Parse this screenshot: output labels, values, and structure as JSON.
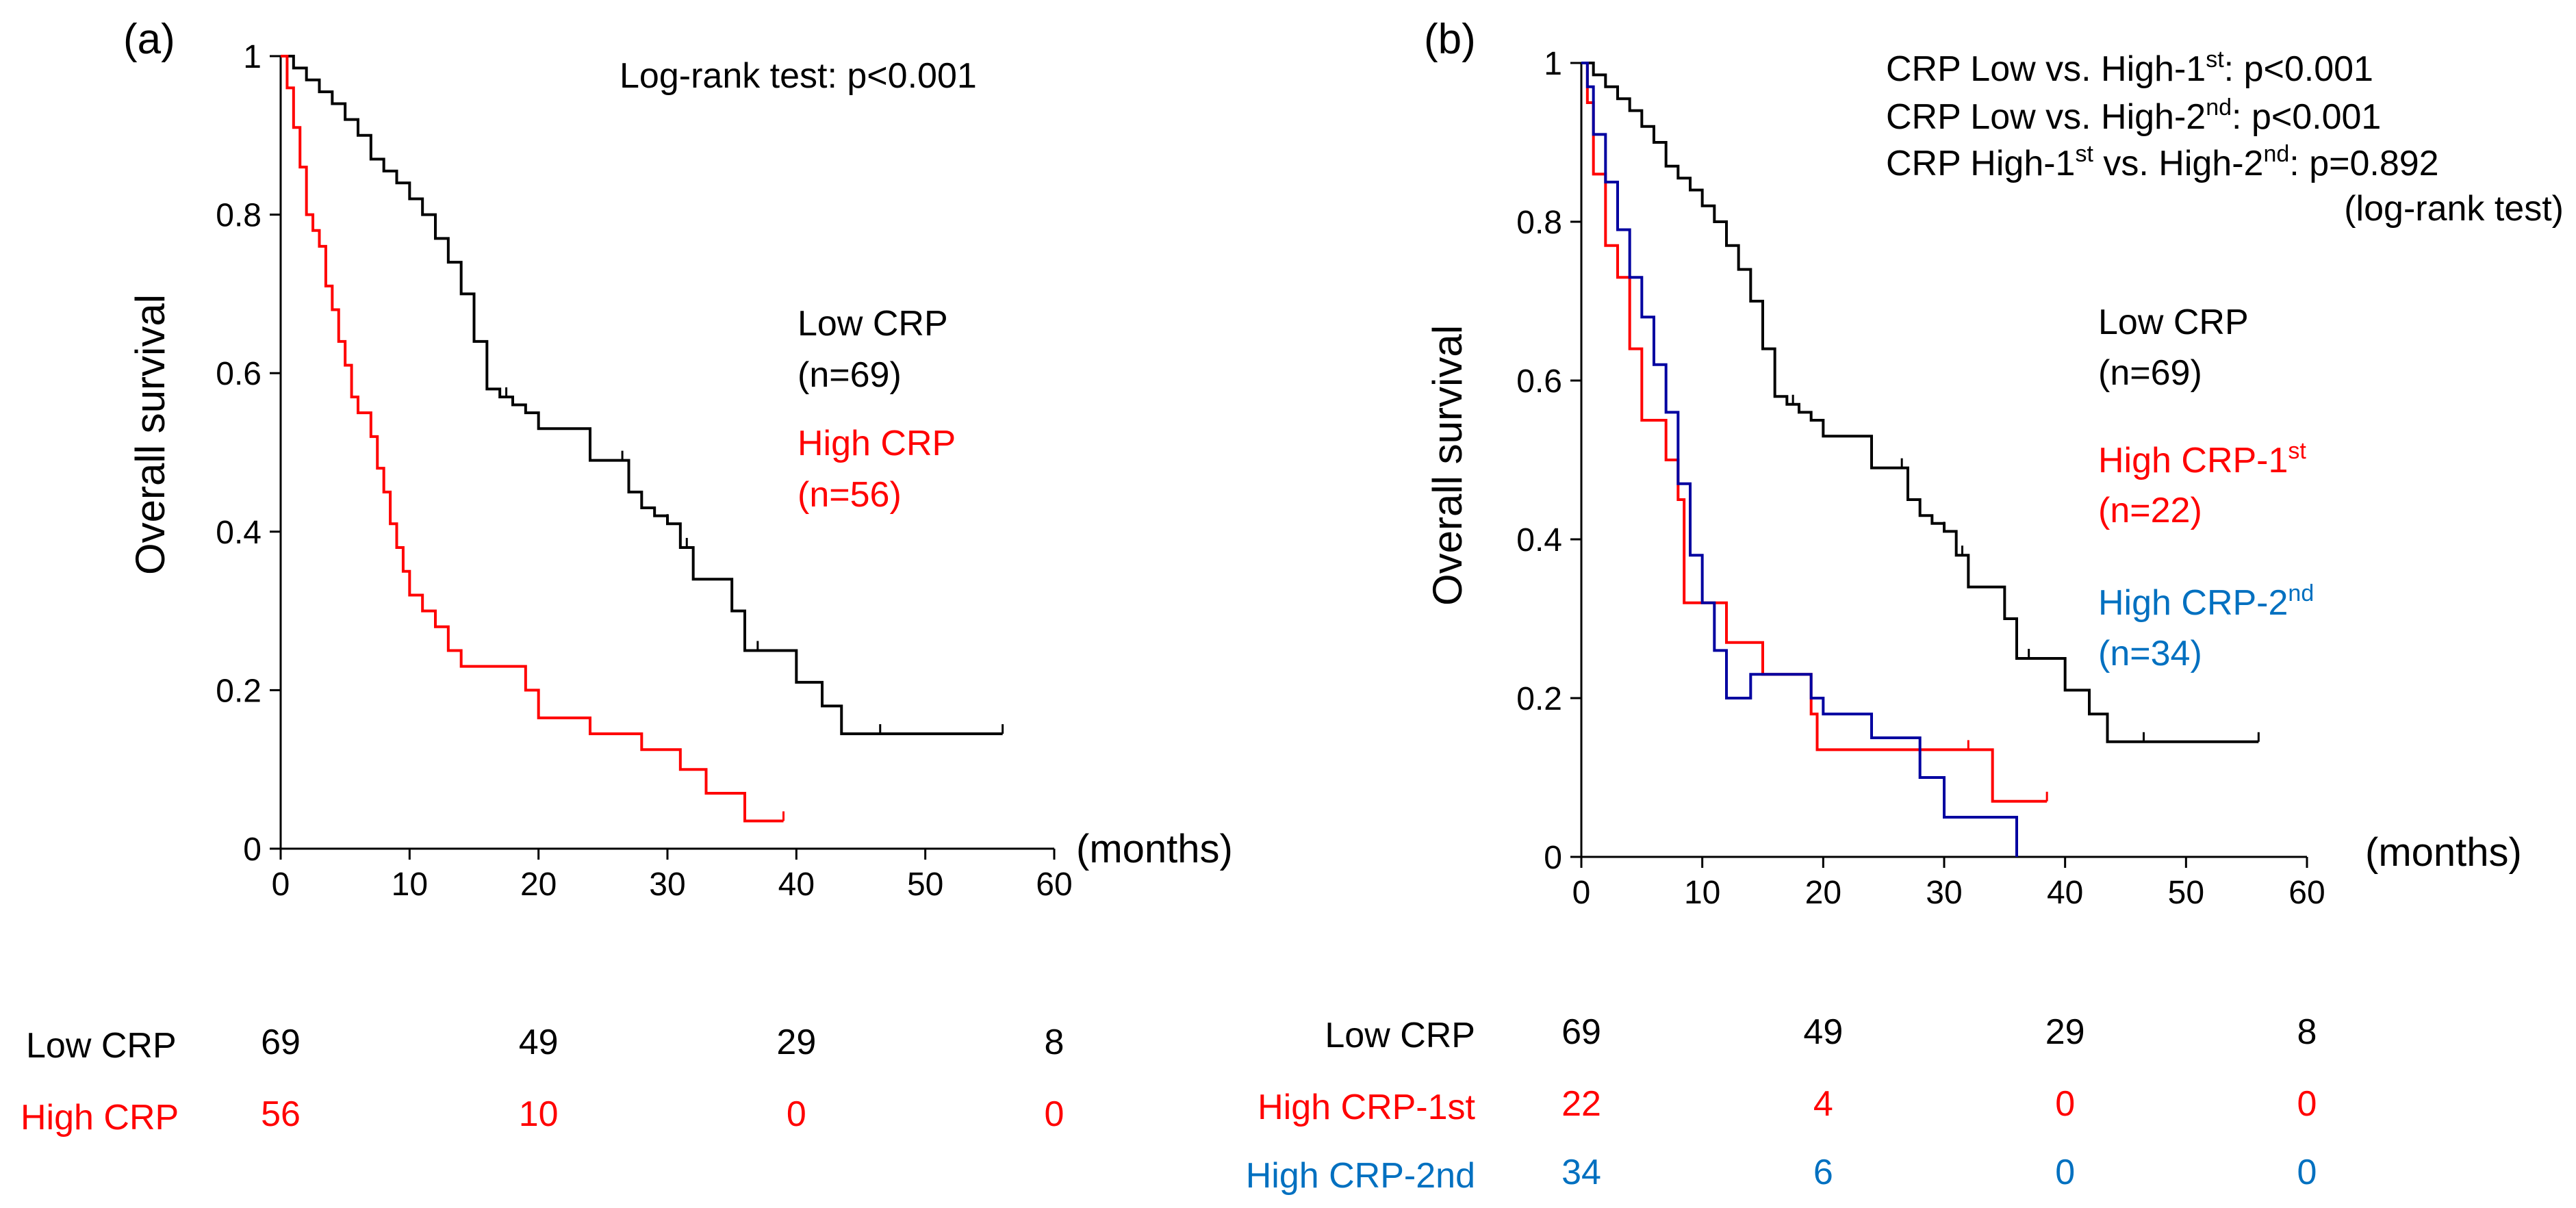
{
  "figure": {
    "colors": {
      "low": "#000000",
      "high": "#ff0000",
      "high1": "#ff0000",
      "high2": "#0000a0",
      "label_blue": "#0070c0",
      "axis": "#000000"
    }
  },
  "chart_data": [
    {
      "type": "line",
      "step": true,
      "panel_label": "(a)",
      "ylabel": "Overall survival",
      "xlabel": "(months)",
      "xlim": [
        0,
        60
      ],
      "ylim": [
        0,
        1
      ],
      "xticks": [
        "0",
        "10",
        "20",
        "30",
        "40",
        "50",
        "60"
      ],
      "yticks": [
        "0",
        "0.2",
        "0.4",
        "0.6",
        "0.8",
        "1"
      ],
      "test_lines": [
        "Log-rank test: p<0.001"
      ],
      "legend": [
        {
          "name": "Low CRP",
          "n": "(n=69)",
          "color": "#000000"
        },
        {
          "name": "High CRP",
          "n": "(n=56)",
          "color": "#ff0000"
        }
      ],
      "series": [
        {
          "name": "Low CRP",
          "color": "#000000",
          "x": [
            0,
            1,
            2,
            3,
            4,
            5,
            6,
            7,
            8,
            9,
            10,
            11,
            12,
            13,
            14,
            15,
            16,
            17,
            18,
            19,
            20,
            22,
            24,
            26,
            27,
            28,
            29,
            30,
            31,
            32,
            34,
            35,
            36,
            38,
            40,
            42,
            43.5,
            56
          ],
          "y": [
            1,
            0.985,
            0.97,
            0.955,
            0.94,
            0.92,
            0.9,
            0.87,
            0.855,
            0.84,
            0.82,
            0.8,
            0.77,
            0.74,
            0.7,
            0.64,
            0.58,
            0.57,
            0.56,
            0.55,
            0.53,
            0.53,
            0.49,
            0.49,
            0.45,
            0.43,
            0.42,
            0.41,
            0.38,
            0.34,
            0.34,
            0.3,
            0.25,
            0.25,
            0.21,
            0.18,
            0.145,
            0.145
          ]
        },
        {
          "name": "High CRP",
          "color": "#ff0000",
          "x": [
            0,
            0.5,
            1,
            1.5,
            2,
            2.5,
            3,
            3.5,
            4,
            4.5,
            5,
            5.5,
            6,
            7,
            7.5,
            8,
            8.5,
            9,
            9.5,
            10,
            11,
            12,
            13,
            14,
            15,
            19,
            20,
            24,
            28,
            31,
            33,
            36,
            38,
            39
          ],
          "y": [
            1,
            0.96,
            0.91,
            0.86,
            0.8,
            0.78,
            0.76,
            0.71,
            0.68,
            0.64,
            0.61,
            0.57,
            0.55,
            0.52,
            0.48,
            0.45,
            0.41,
            0.38,
            0.35,
            0.32,
            0.3,
            0.28,
            0.25,
            0.23,
            0.23,
            0.2,
            0.165,
            0.145,
            0.125,
            0.1,
            0.07,
            0.035,
            0.035,
            0.035
          ]
        }
      ],
      "censors": [
        {
          "series": "Low CRP",
          "x": [
            14,
            16,
            17.5,
            26.5,
            28,
            30,
            31.5,
            37,
            46.5,
            56
          ],
          "y": [
            0.7,
            0.58,
            0.57,
            0.49,
            0.43,
            0.41,
            0.38,
            0.25,
            0.145,
            0.145
          ]
        },
        {
          "series": "High CRP",
          "x": [
            28,
            31,
            39
          ],
          "y": [
            0.125,
            0.1,
            0.035
          ]
        }
      ],
      "risk_table": {
        "times": [
          0,
          20,
          40,
          60
        ],
        "rows": [
          {
            "label": "Low CRP",
            "color": "#000000",
            "values": [
              "69",
              "49",
              "29",
              "8"
            ]
          },
          {
            "label": "High CRP",
            "color": "#ff0000",
            "values": [
              "56",
              "10",
              "0",
              "0"
            ]
          }
        ]
      }
    },
    {
      "type": "line",
      "step": true,
      "panel_label": "(b)",
      "ylabel": "Overall survival",
      "xlabel": "(months)",
      "xlim": [
        0,
        60
      ],
      "ylim": [
        0,
        1
      ],
      "xticks": [
        "0",
        "10",
        "20",
        "30",
        "40",
        "50",
        "60"
      ],
      "yticks": [
        "0",
        "0.2",
        "0.4",
        "0.6",
        "0.8",
        "1"
      ],
      "test_lines": [
        {
          "pre": "CRP Low vs. High-1",
          "sup": "st",
          "post": ": p<0.001"
        },
        {
          "pre": "CRP Low vs. High-2",
          "sup": "nd",
          "post": ": p<0.001"
        },
        {
          "pre": "CRP High-1",
          "sup": "st",
          "post": " vs. High-2",
          "sup2": "nd",
          "post2": ": p=0.892"
        }
      ],
      "test_note": "(log-rank test)",
      "legend": [
        {
          "name": "Low CRP",
          "sup": "",
          "n": "(n=69)",
          "color": "#000000"
        },
        {
          "name": "High CRP-1",
          "sup": "st",
          "n": "(n=22)",
          "color": "#ff0000"
        },
        {
          "name": "High CRP-2",
          "sup": "nd",
          "n": "(n=34)",
          "color": "#0070c0"
        }
      ],
      "series": [
        {
          "name": "Low CRP",
          "color": "#000000",
          "x": [
            0,
            1,
            2,
            3,
            4,
            5,
            6,
            7,
            8,
            9,
            10,
            11,
            12,
            13,
            14,
            15,
            16,
            17,
            18,
            19,
            20,
            22,
            24,
            26,
            27,
            28,
            29,
            30,
            31,
            32,
            34,
            35,
            36,
            38,
            40,
            42,
            43.5,
            56
          ],
          "y": [
            1,
            0.985,
            0.97,
            0.955,
            0.94,
            0.92,
            0.9,
            0.87,
            0.855,
            0.84,
            0.82,
            0.8,
            0.77,
            0.74,
            0.7,
            0.64,
            0.58,
            0.57,
            0.56,
            0.55,
            0.53,
            0.53,
            0.49,
            0.49,
            0.45,
            0.43,
            0.42,
            0.41,
            0.38,
            0.34,
            0.34,
            0.3,
            0.25,
            0.25,
            0.21,
            0.18,
            0.145,
            0.145
          ]
        },
        {
          "name": "High CRP-1st",
          "color": "#ff0000",
          "x": [
            0,
            0.5,
            1,
            2,
            3,
            4,
            5,
            6,
            7,
            8,
            8.5,
            10,
            11,
            12,
            15,
            19,
            19.5,
            28,
            34,
            38.5
          ],
          "y": [
            1,
            0.95,
            0.86,
            0.77,
            0.73,
            0.64,
            0.55,
            0.55,
            0.5,
            0.45,
            0.32,
            0.32,
            0.32,
            0.27,
            0.23,
            0.18,
            0.135,
            0.135,
            0.07,
            0.07
          ]
        },
        {
          "name": "High CRP-2nd",
          "color": "#0000a0",
          "x": [
            0,
            0.5,
            1,
            2,
            3,
            4,
            5,
            6,
            7,
            8,
            9,
            10,
            11,
            12,
            14,
            19,
            20,
            24,
            28,
            30,
            32,
            36
          ],
          "y": [
            1,
            0.97,
            0.91,
            0.85,
            0.79,
            0.73,
            0.68,
            0.62,
            0.56,
            0.47,
            0.38,
            0.32,
            0.26,
            0.2,
            0.23,
            0.2,
            0.18,
            0.15,
            0.1,
            0.05,
            0.05,
            0
          ]
        }
      ],
      "censors": [
        {
          "series": "Low CRP",
          "x": [
            14,
            16,
            17.5,
            26.5,
            28,
            30,
            31.5,
            37,
            46.5,
            56
          ],
          "y": [
            0.7,
            0.58,
            0.57,
            0.49,
            0.43,
            0.41,
            0.38,
            0.25,
            0.145,
            0.145
          ]
        },
        {
          "series": "High CRP-1st",
          "x": [
            32,
            38.5
          ],
          "y": [
            0.135,
            0.07
          ]
        }
      ],
      "risk_table": {
        "times": [
          0,
          20,
          40,
          60
        ],
        "rows": [
          {
            "label": "Low CRP",
            "color": "#000000",
            "values": [
              "69",
              "49",
              "29",
              "8"
            ]
          },
          {
            "label": "High CRP-1st",
            "color": "#ff0000",
            "values": [
              "22",
              "4",
              "0",
              "0"
            ]
          },
          {
            "label": "High CRP-2nd",
            "color": "#0070c0",
            "values": [
              "34",
              "6",
              "0",
              "0"
            ]
          }
        ]
      }
    }
  ]
}
